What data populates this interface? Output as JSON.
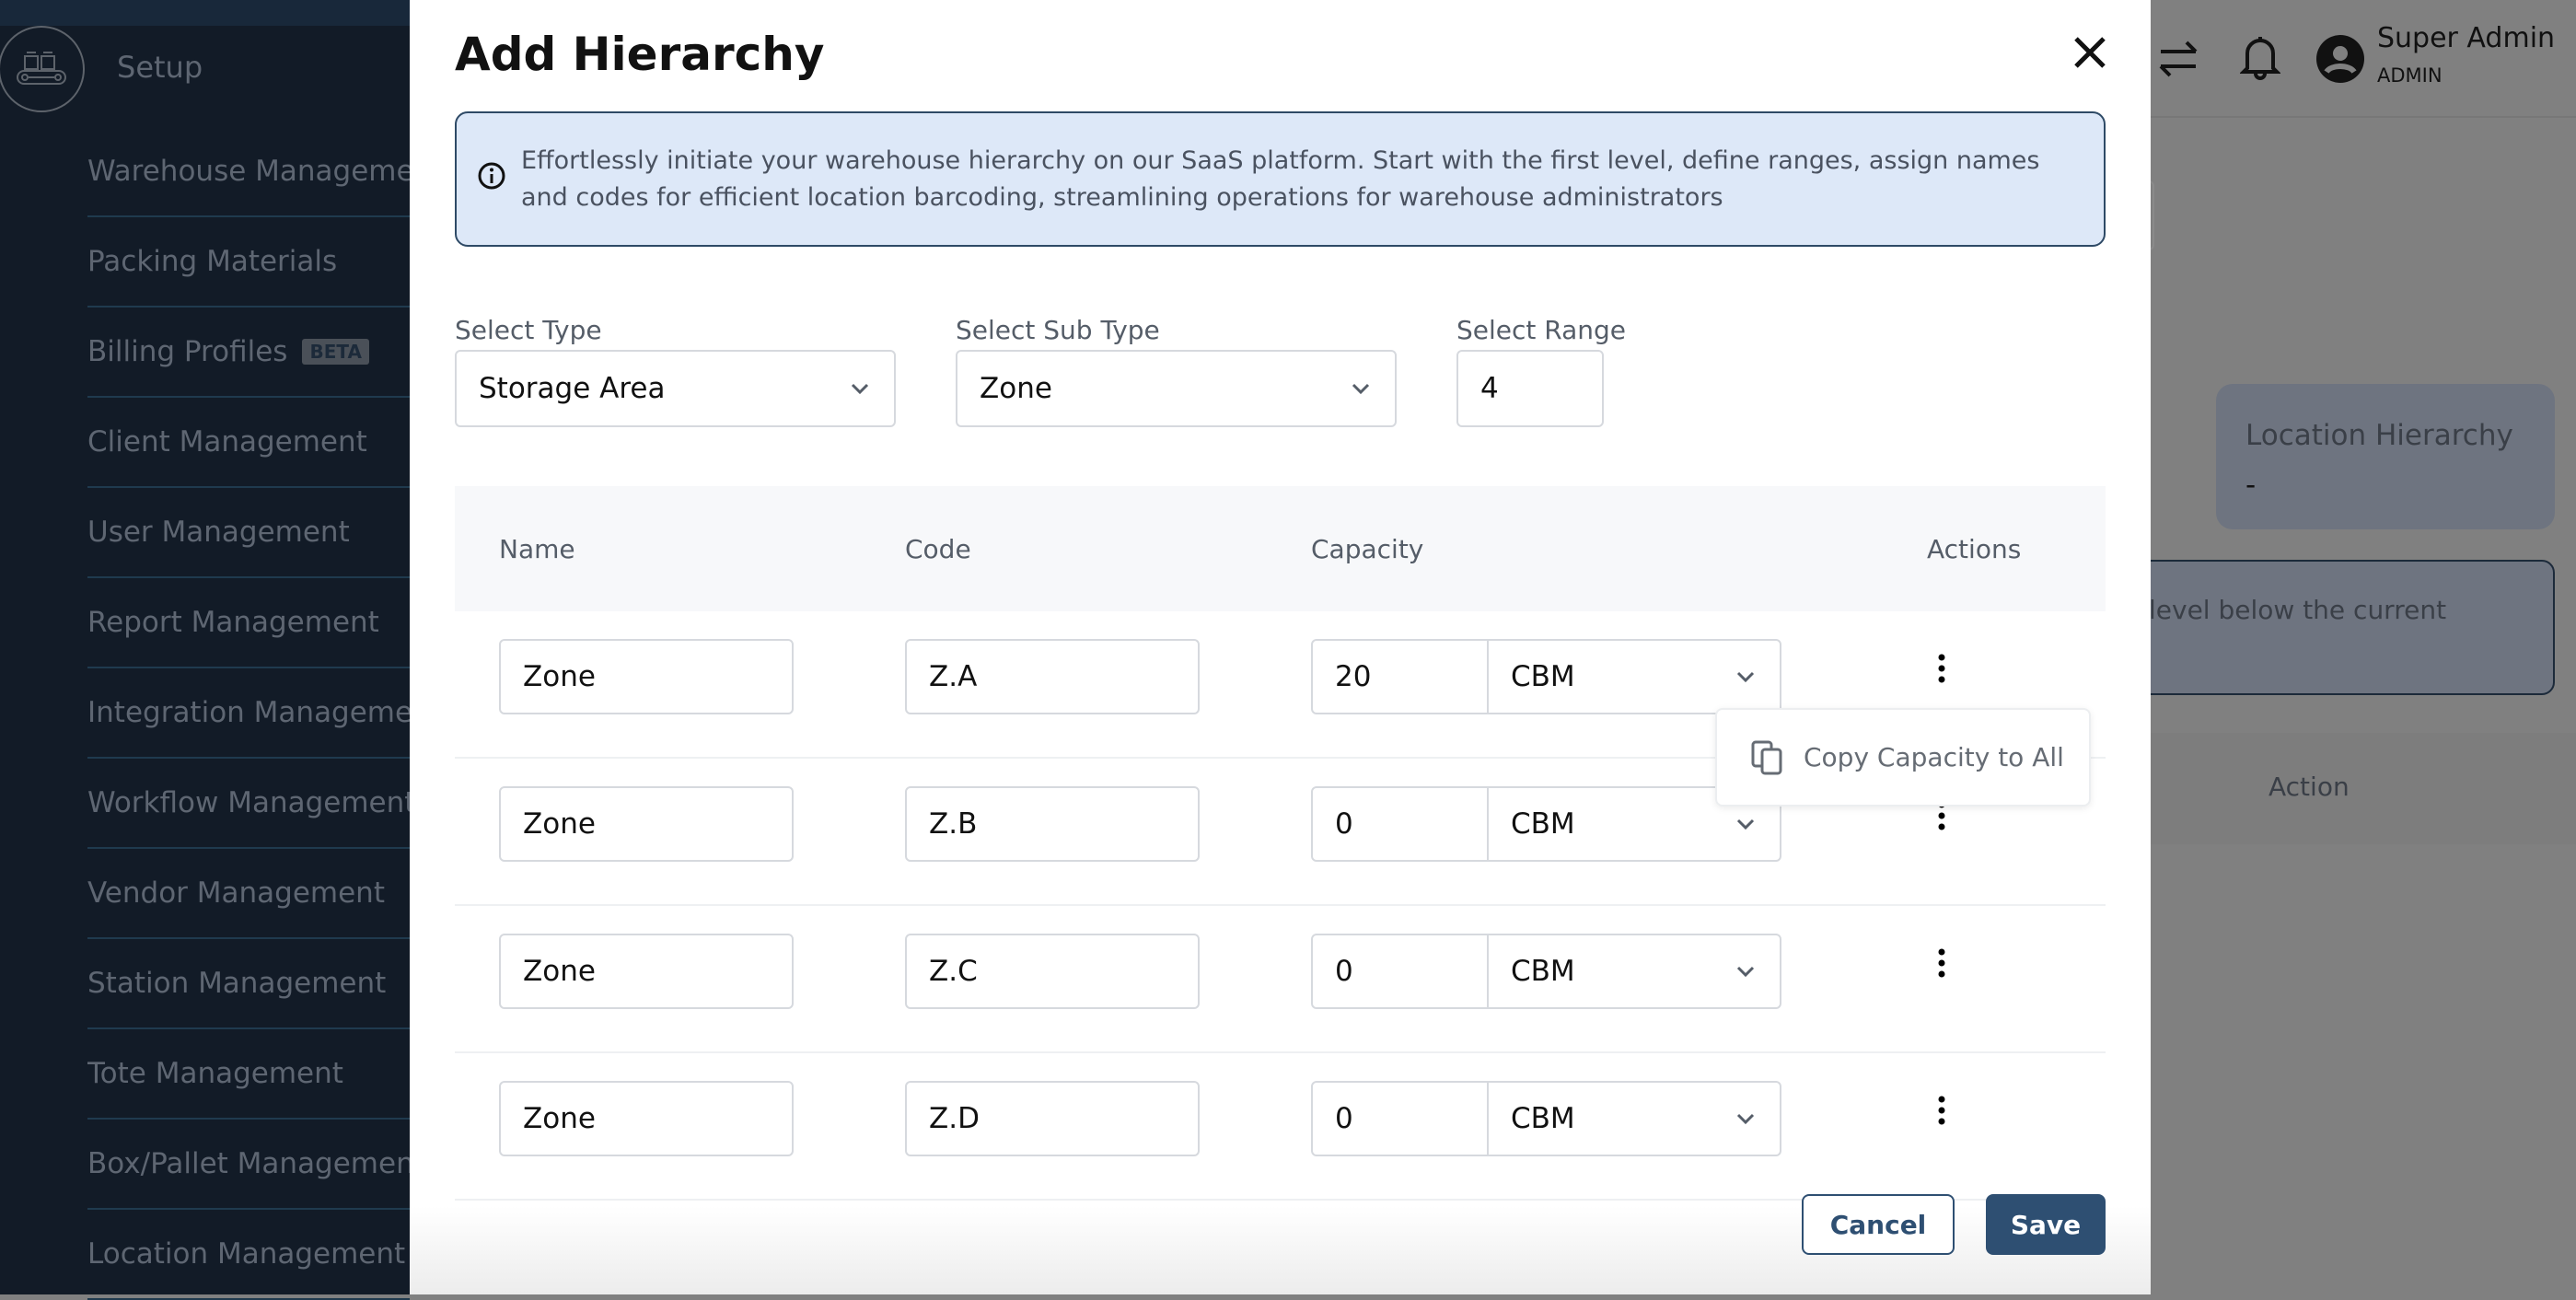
{
  "sidebar": {
    "section_title": "Setup",
    "items": [
      {
        "label": "Warehouse Management"
      },
      {
        "label": "Packing Materials"
      },
      {
        "label": "Billing Profiles",
        "badge": "BETA"
      },
      {
        "label": "Client Management"
      },
      {
        "label": "User Management"
      },
      {
        "label": "Report Management"
      },
      {
        "label": "Integration Management"
      },
      {
        "label": "Workflow Management"
      },
      {
        "label": "Vendor Management"
      },
      {
        "label": "Station Management"
      },
      {
        "label": "Tote Management"
      },
      {
        "label": "Box/Pallet Management"
      },
      {
        "label": "Location Management"
      }
    ]
  },
  "header": {
    "user_name": "Super Admin",
    "user_role": "ADMIN",
    "icons": [
      "swap-icon",
      "bell-icon",
      "user-avatar-icon"
    ]
  },
  "background": {
    "card_title": "Location Hierarchy",
    "card_value": "-",
    "info_fragment": "level below the current",
    "table_header_action": "Action"
  },
  "modal": {
    "title": "Add Hierarchy",
    "info_text": "Effortlessly initiate your warehouse hierarchy on our SaaS platform. Start with the first level, define ranges, assign names and codes for efficient location barcoding, streamlining operations for warehouse administrators",
    "select_type": {
      "label": "Select Type",
      "value": "Storage Area"
    },
    "select_sub_type": {
      "label": "Select Sub Type",
      "value": "Zone"
    },
    "select_range": {
      "label": "Select Range",
      "value": "4"
    },
    "table": {
      "headers": {
        "name": "Name",
        "code": "Code",
        "capacity": "Capacity",
        "actions": "Actions"
      },
      "rows": [
        {
          "name": "Zone",
          "code": "Z.A",
          "capacity": "20",
          "unit": "CBM"
        },
        {
          "name": "Zone",
          "code": "Z.B",
          "capacity": "0",
          "unit": "CBM"
        },
        {
          "name": "Zone",
          "code": "Z.C",
          "capacity": "0",
          "unit": "CBM"
        },
        {
          "name": "Zone",
          "code": "Z.D",
          "capacity": "0",
          "unit": "CBM"
        }
      ]
    },
    "popup_menu": {
      "item": "Copy Capacity to All"
    },
    "cancel_label": "Cancel",
    "save_label": "Save"
  },
  "colors": {
    "primary": "#2e4f72",
    "info_bg": "#dde8f8",
    "sidebar_bg": "#121b27",
    "overlay": "#808080"
  }
}
